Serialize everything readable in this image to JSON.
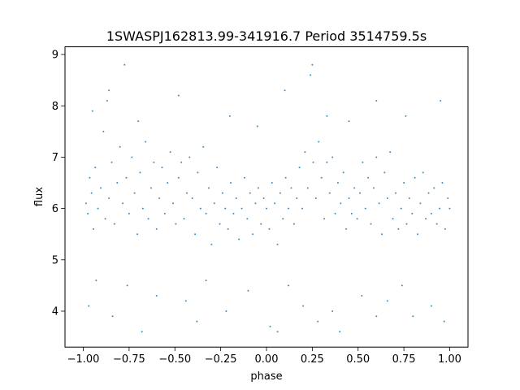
{
  "chart_data": {
    "type": "scatter",
    "title": "1SWASPJ162813.99-341916.7 Period 3514759.5s",
    "xlabel": "phase",
    "ylabel": "flux",
    "xlim": [
      -1.1,
      1.1
    ],
    "ylim": [
      3.3,
      9.15
    ],
    "xticks": [
      -1.0,
      -0.75,
      -0.5,
      -0.25,
      0.0,
      0.25,
      0.5,
      0.75,
      1.0
    ],
    "xtick_labels": [
      "−1.00",
      "−0.75",
      "−0.50",
      "−0.25",
      "0.00",
      "0.25",
      "0.50",
      "0.75",
      "1.00"
    ],
    "yticks": [
      4,
      5,
      6,
      7,
      8,
      9
    ],
    "ytick_labels": [
      "4",
      "5",
      "6",
      "7",
      "8",
      "9"
    ],
    "grid": false,
    "marker_color": "#1f77b4",
    "series": [
      {
        "description_free": true,
        "points": [
          [
            -0.985,
            6.1
          ],
          [
            -0.975,
            5.9
          ],
          [
            -0.965,
            6.6
          ],
          [
            -0.955,
            6.3
          ],
          [
            -0.945,
            5.6
          ],
          [
            -0.935,
            6.8
          ],
          [
            -0.92,
            6.0
          ],
          [
            -0.905,
            6.4
          ],
          [
            -0.89,
            7.5
          ],
          [
            -0.88,
            5.8
          ],
          [
            -0.87,
            8.1
          ],
          [
            -0.86,
            6.2
          ],
          [
            -0.845,
            6.9
          ],
          [
            -0.83,
            5.7
          ],
          [
            -0.815,
            6.5
          ],
          [
            -0.8,
            7.2
          ],
          [
            -0.785,
            6.1
          ],
          [
            -0.775,
            8.8
          ],
          [
            -0.765,
            6.6
          ],
          [
            -0.75,
            5.9
          ],
          [
            -0.735,
            7.0
          ],
          [
            -0.72,
            6.3
          ],
          [
            -0.705,
            5.5
          ],
          [
            -0.69,
            6.7
          ],
          [
            -0.675,
            6.0
          ],
          [
            -0.66,
            7.3
          ],
          [
            -0.645,
            5.8
          ],
          [
            -0.63,
            6.4
          ],
          [
            -0.615,
            6.9
          ],
          [
            -0.6,
            5.6
          ],
          [
            -0.585,
            6.2
          ],
          [
            -0.57,
            6.8
          ],
          [
            -0.555,
            5.9
          ],
          [
            -0.54,
            6.5
          ],
          [
            -0.525,
            7.1
          ],
          [
            -0.51,
            6.1
          ],
          [
            -0.495,
            5.7
          ],
          [
            -0.48,
            6.6
          ],
          [
            -0.465,
            6.9
          ],
          [
            -0.45,
            5.8
          ],
          [
            -0.435,
            6.3
          ],
          [
            -0.42,
            7.0
          ],
          [
            -0.405,
            6.2
          ],
          [
            -0.39,
            5.5
          ],
          [
            -0.375,
            6.7
          ],
          [
            -0.36,
            6.0
          ],
          [
            -0.345,
            7.2
          ],
          [
            -0.33,
            5.9
          ],
          [
            -0.315,
            6.4
          ],
          [
            -0.3,
            5.3
          ],
          [
            -0.285,
            6.1
          ],
          [
            -0.27,
            6.8
          ],
          [
            -0.255,
            5.7
          ],
          [
            -0.24,
            6.3
          ],
          [
            -0.225,
            6.0
          ],
          [
            -0.21,
            5.6
          ],
          [
            -0.195,
            6.5
          ],
          [
            -0.18,
            5.9
          ],
          [
            -0.165,
            6.2
          ],
          [
            -0.15,
            5.4
          ],
          [
            -0.135,
            6.0
          ],
          [
            -0.12,
            6.6
          ],
          [
            -0.105,
            5.8
          ],
          [
            -0.09,
            6.3
          ],
          [
            -0.075,
            5.5
          ],
          [
            -0.06,
            6.1
          ],
          [
            -0.045,
            6.4
          ],
          [
            -0.03,
            5.7
          ],
          [
            -0.015,
            6.2
          ],
          [
            0.0,
            6.0
          ],
          [
            0.015,
            5.6
          ],
          [
            0.03,
            6.5
          ],
          [
            0.045,
            6.1
          ],
          [
            0.06,
            5.3
          ],
          [
            0.075,
            6.3
          ],
          [
            0.09,
            5.8
          ],
          [
            0.105,
            6.6
          ],
          [
            0.12,
            6.0
          ],
          [
            0.135,
            6.4
          ],
          [
            0.15,
            5.7
          ],
          [
            0.165,
            6.2
          ],
          [
            0.18,
            6.8
          ],
          [
            0.195,
            6.0
          ],
          [
            0.21,
            7.1
          ],
          [
            0.225,
            6.4
          ],
          [
            0.24,
            8.6
          ],
          [
            0.255,
            6.9
          ],
          [
            0.27,
            6.2
          ],
          [
            0.285,
            7.3
          ],
          [
            0.3,
            6.6
          ],
          [
            0.315,
            5.8
          ],
          [
            0.33,
            6.9
          ],
          [
            0.345,
            6.3
          ],
          [
            0.36,
            7.0
          ],
          [
            0.375,
            5.9
          ],
          [
            0.39,
            6.5
          ],
          [
            0.405,
            6.1
          ],
          [
            0.42,
            6.7
          ],
          [
            0.435,
            5.6
          ],
          [
            0.45,
            6.2
          ],
          [
            0.465,
            5.9
          ],
          [
            0.48,
            6.4
          ],
          [
            0.495,
            5.8
          ],
          [
            0.51,
            6.3
          ],
          [
            0.525,
            6.9
          ],
          [
            0.54,
            6.0
          ],
          [
            0.555,
            6.6
          ],
          [
            0.57,
            5.7
          ],
          [
            0.585,
            6.4
          ],
          [
            0.6,
            7.0
          ],
          [
            0.615,
            6.1
          ],
          [
            0.63,
            5.5
          ],
          [
            0.645,
            6.7
          ],
          [
            0.66,
            6.2
          ],
          [
            0.675,
            7.1
          ],
          [
            0.69,
            5.8
          ],
          [
            0.705,
            6.3
          ],
          [
            0.72,
            5.6
          ],
          [
            0.735,
            6.0
          ],
          [
            0.75,
            6.5
          ],
          [
            0.765,
            5.7
          ],
          [
            0.78,
            6.2
          ],
          [
            0.795,
            5.9
          ],
          [
            0.81,
            6.6
          ],
          [
            0.825,
            5.5
          ],
          [
            0.84,
            6.1
          ],
          [
            0.855,
            6.7
          ],
          [
            0.87,
            5.8
          ],
          [
            0.885,
            6.3
          ],
          [
            0.9,
            5.9
          ],
          [
            0.915,
            6.4
          ],
          [
            0.93,
            5.7
          ],
          [
            0.945,
            6.0
          ],
          [
            0.96,
            6.5
          ],
          [
            0.975,
            5.6
          ],
          [
            0.99,
            6.2
          ],
          [
            1.0,
            6.0
          ],
          [
            -0.97,
            4.1
          ],
          [
            -0.93,
            4.6
          ],
          [
            -0.84,
            3.9
          ],
          [
            -0.76,
            4.5
          ],
          [
            -0.68,
            3.6
          ],
          [
            -0.6,
            4.3
          ],
          [
            -0.44,
            4.2
          ],
          [
            -0.38,
            3.8
          ],
          [
            -0.33,
            4.6
          ],
          [
            -0.22,
            4.0
          ],
          [
            -0.1,
            4.4
          ],
          [
            0.02,
            3.7
          ],
          [
            0.06,
            3.6
          ],
          [
            0.12,
            4.5
          ],
          [
            0.2,
            4.1
          ],
          [
            0.28,
            3.8
          ],
          [
            0.36,
            4.0
          ],
          [
            0.4,
            3.6
          ],
          [
            0.52,
            4.3
          ],
          [
            0.6,
            3.9
          ],
          [
            0.66,
            4.2
          ],
          [
            0.74,
            4.5
          ],
          [
            0.8,
            3.9
          ],
          [
            0.9,
            4.1
          ],
          [
            0.97,
            3.8
          ],
          [
            -0.95,
            7.9
          ],
          [
            -0.86,
            8.3
          ],
          [
            -0.7,
            7.7
          ],
          [
            -0.48,
            8.2
          ],
          [
            -0.2,
            7.8
          ],
          [
            -0.05,
            7.6
          ],
          [
            0.1,
            8.3
          ],
          [
            0.25,
            8.8
          ],
          [
            0.33,
            7.8
          ],
          [
            0.45,
            7.7
          ],
          [
            0.6,
            8.1
          ],
          [
            0.76,
            7.8
          ],
          [
            0.95,
            8.1
          ]
        ]
      }
    ]
  }
}
